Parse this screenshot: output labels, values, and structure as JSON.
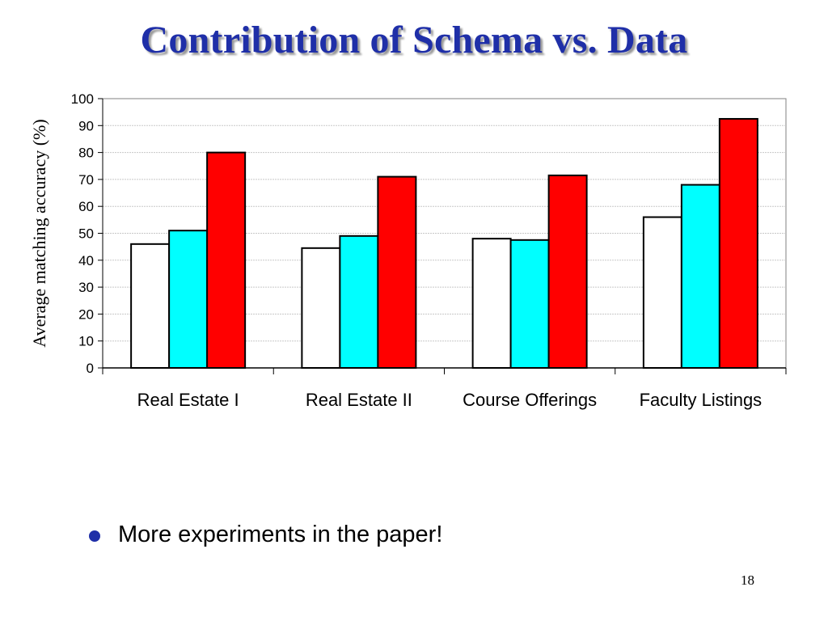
{
  "slide": {
    "title": "Contribution of Schema vs. Data",
    "bullet": "More experiments in the paper!",
    "page_number": "18"
  },
  "chart_data": {
    "type": "bar",
    "title": "",
    "xlabel": "",
    "ylabel": "Average matching accuracy (%)",
    "categories": [
      "Real Estate I",
      "Real Estate II",
      "Course Offerings",
      "Faculty Listings"
    ],
    "ylim": [
      0,
      100
    ],
    "yticks": [
      "0",
      "10",
      "20",
      "30",
      "40",
      "50",
      "60",
      "70",
      "80",
      "90",
      "100"
    ],
    "grid": true,
    "legend": "none",
    "series": [
      {
        "color": "#ffffff",
        "values": [
          46,
          44.5,
          48,
          56
        ]
      },
      {
        "color": "#00ffff",
        "values": [
          51,
          49,
          47.5,
          68
        ]
      },
      {
        "color": "#ff0000",
        "values": [
          80,
          71,
          71.5,
          92.5
        ]
      }
    ]
  },
  "colors": {
    "title": "#1f2fa8",
    "bullet": "#1f2fa8"
  }
}
